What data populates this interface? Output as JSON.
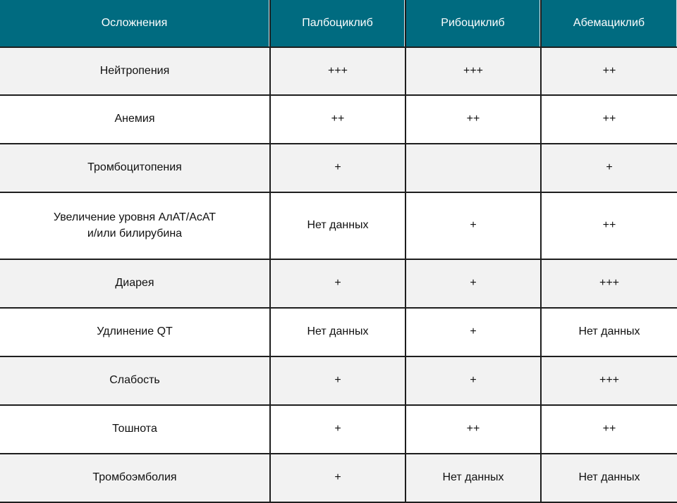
{
  "table": {
    "header": [
      "Осложнения",
      "Палбоциклиб",
      "Рибоциклиб",
      "Абемациклиб"
    ],
    "rows": [
      [
        "Нейтропения",
        "+++",
        "+++",
        "++"
      ],
      [
        "Анемия",
        "++",
        "++",
        "++"
      ],
      [
        "Тромбоцитопения",
        "+",
        null,
        "+"
      ],
      [
        "Увеличение уровня АлАТ/АсАТ\nи/или билирубина",
        "Нет данных",
        "+",
        "++"
      ],
      [
        "Диарея",
        "+",
        "+",
        "+++"
      ],
      [
        "Удлинение QT",
        "Нет данных",
        "+",
        "Нет данных"
      ],
      [
        "Слабость",
        "+",
        "+",
        "+++"
      ],
      [
        "Тошнота",
        "+",
        "++",
        "++"
      ],
      [
        "Тромбоэмболия",
        "+",
        "Нет данных",
        "Нет данных"
      ]
    ]
  }
}
